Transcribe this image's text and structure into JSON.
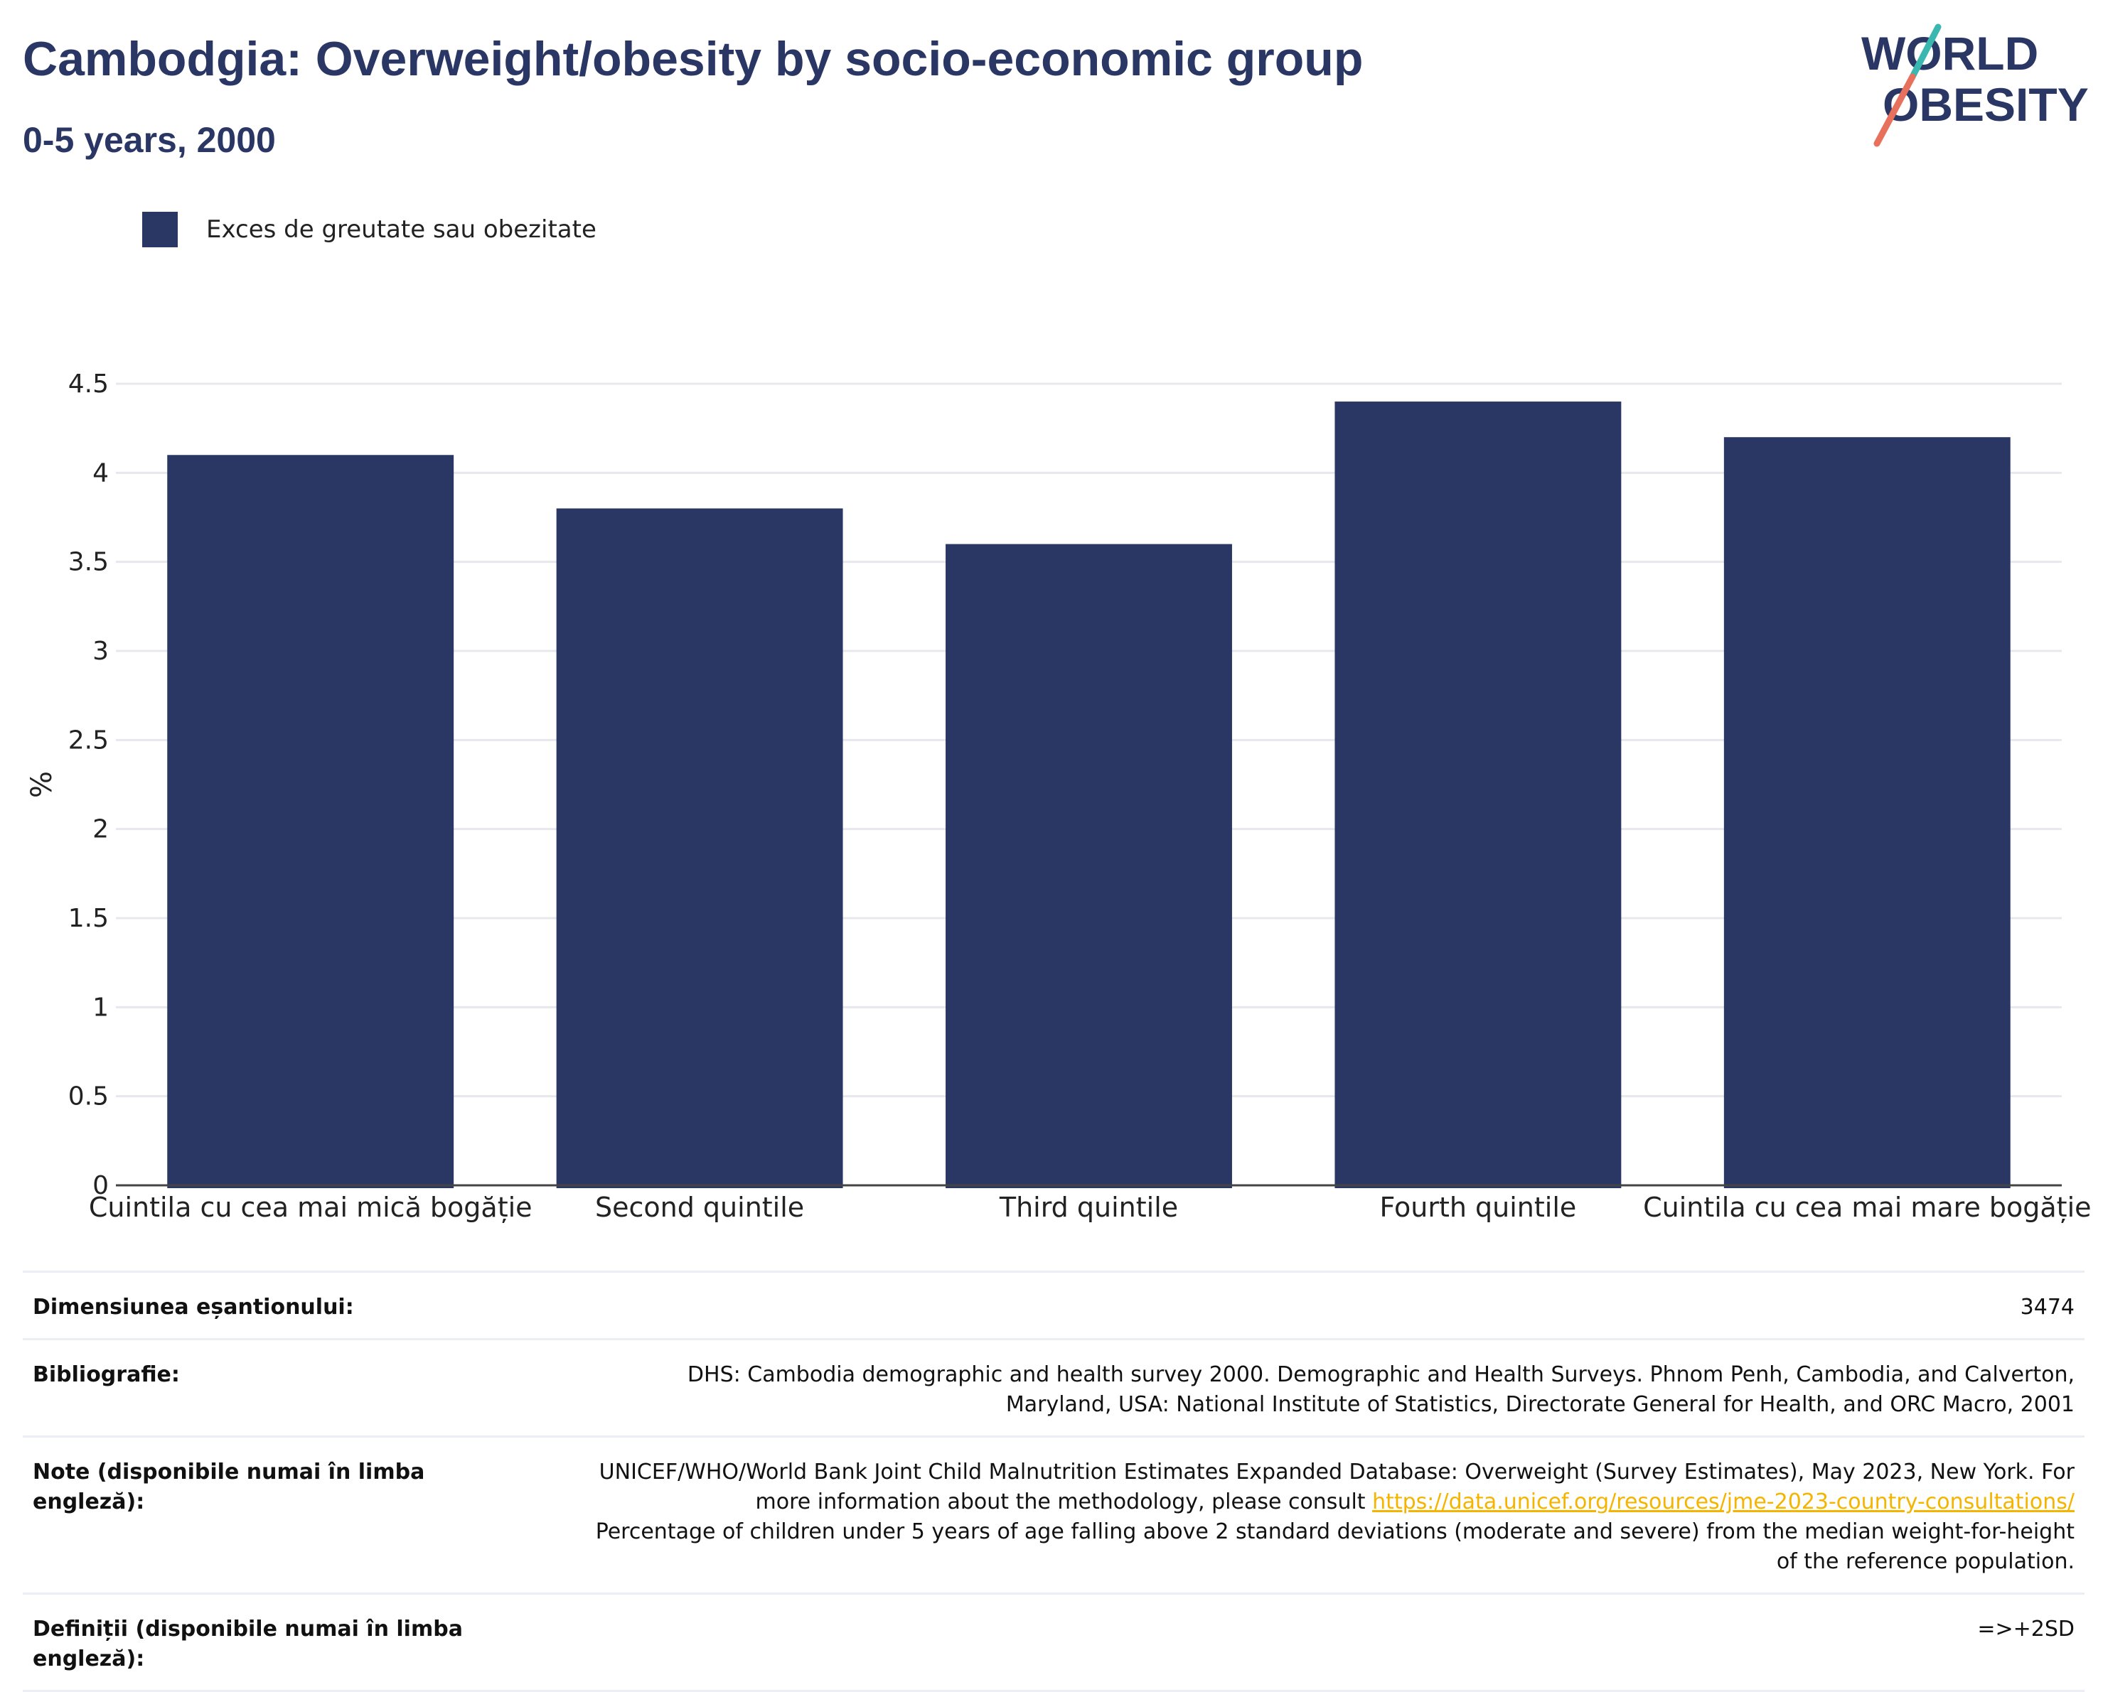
{
  "title": "Cambodgia: Overweight/obesity by socio-economic group",
  "subtitle": "0-5 years, 2000",
  "logo": {
    "line1": "WORLD",
    "line2": "OBESITY",
    "colors": {
      "text": "#2a3664",
      "teal": "#3ab8b0",
      "coral": "#e8715e"
    }
  },
  "legend": {
    "label": "Exces de greutate sau obezitate",
    "color": "#2a3664"
  },
  "chart_data": {
    "type": "bar",
    "categories": [
      "Cuintila cu cea mai mică bogăție",
      "Second quintile",
      "Third quintile",
      "Fourth quintile",
      "Cuintila cu cea mai mare bogăție"
    ],
    "series": [
      {
        "name": "Exces de greutate sau obezitate",
        "values": [
          4.1,
          3.8,
          3.6,
          4.4,
          4.2
        ],
        "color": "#2a3664"
      }
    ],
    "ylabel": "%",
    "ylim": [
      0,
      4.5
    ],
    "yticks": [
      0,
      0.5,
      1,
      1.5,
      2,
      2.5,
      3,
      3.5,
      4,
      4.5
    ],
    "ytick_labels": [
      "0",
      "0.5",
      "1",
      "1.5",
      "2",
      "2.5",
      "3",
      "3.5",
      "4",
      "4.5"
    ],
    "grid": true,
    "legend_position": "top-left"
  },
  "info": {
    "sample_label": "Dimensiunea eșantionului:",
    "sample_value": "3474",
    "bibliography_label": "Bibliografie:",
    "bibliography_value": "DHS: Cambodia demographic and health survey 2000. Demographic and Health Surveys. Phnom Penh, Cambodia, and Calverton, Maryland, USA: National Institute of Statistics, Directorate General for Health, and ORC Macro, 2001",
    "notes_label": "Note (disponibile numai în limba engleză):",
    "notes_text_1": "UNICEF/WHO/World Bank Joint Child Malnutrition Estimates Expanded Database: Overweight (Survey Estimates), May 2023, New York. For more information about the methodology, please consult ",
    "notes_link": "https://data.unicef.org/resources/jme-2023-country-consultations/",
    "notes_text_2": "Percentage of children under 5 years of age falling above 2 standard deviations (moderate and severe) from the median weight-for-height of the reference population.",
    "definitions_label": "Definiții (disponibile numai în limba engleză):",
    "definitions_value": "=>+2SD"
  }
}
